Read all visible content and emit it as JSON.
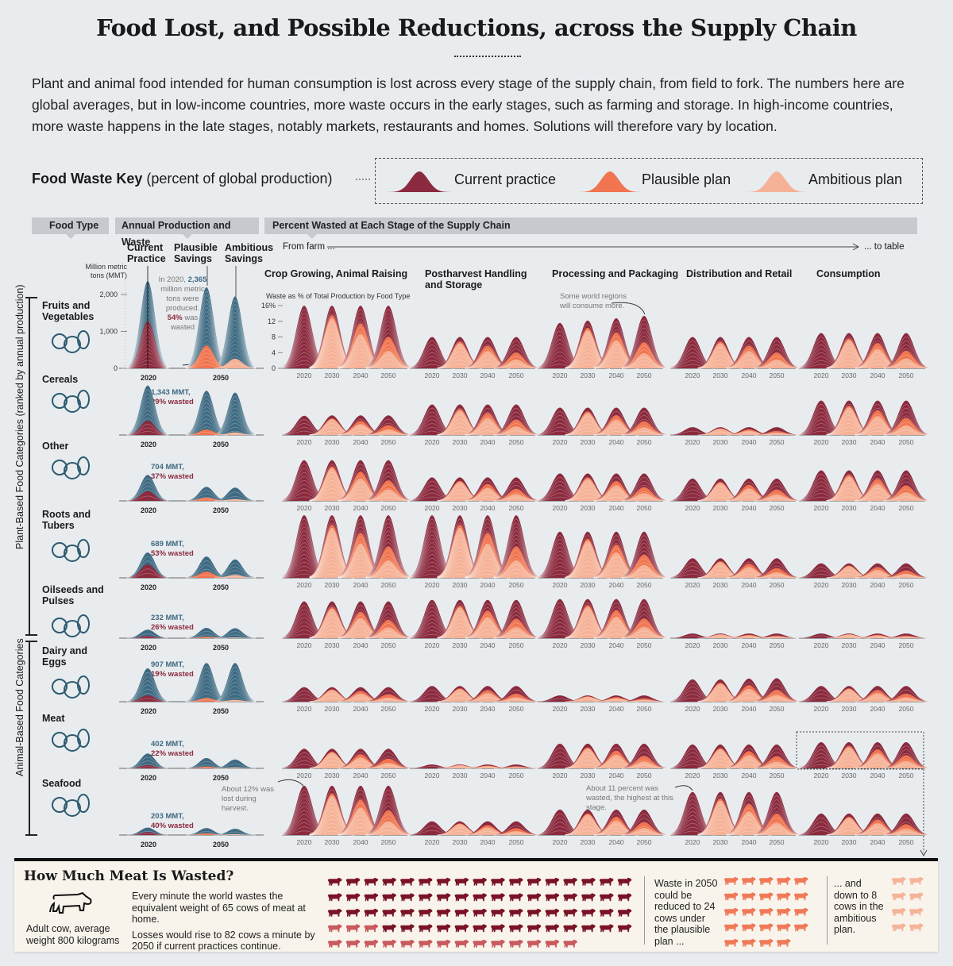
{
  "title": "Food Lost, and Possible Reductions, across the Supply Chain",
  "intro": "Plant and animal food intended for human consumption is lost across every stage of the supply chain, from field to fork. The numbers here are global averages, but in low-income countries, more waste occurs in the early stages, such as farming and storage. In high-income countries, more waste happens in the late stages, notably markets, restaurants and homes. Solutions will therefore vary by location.",
  "key": {
    "label_bold": "Food Waste Key",
    "label_rest": "(percent of global production)",
    "items": [
      {
        "label": "Current practice",
        "color": "#8b2a3e"
      },
      {
        "label": "Plausible plan",
        "color": "#f07550"
      },
      {
        "label": "Ambitious plan",
        "color": "#f6b297"
      }
    ]
  },
  "headers": {
    "food_type": "Food Type",
    "production": "Annual Production and Waste",
    "percent": "Percent Wasted at Each Stage of the Supply Chain"
  },
  "production_cols": {
    "current": "Current Practice",
    "plausible": "Plausible Savings",
    "ambitious": "Ambitious Savings"
  },
  "flow": {
    "from": "From farm ...",
    "to": "... to table"
  },
  "production_axis": {
    "label": "Million metric tons (MMT)",
    "ticks": [
      "0",
      "1,000",
      "2,000"
    ],
    "tick_values": [
      0,
      1000,
      2000
    ],
    "years": [
      "2020",
      "2050"
    ]
  },
  "stage_axis": {
    "label": "Waste as % of Total Production by Food Type",
    "ticks": [
      "0",
      "4",
      "8",
      "12",
      "16%"
    ],
    "tick_values": [
      0,
      4,
      8,
      12,
      16
    ],
    "years": [
      "2020",
      "2030",
      "2040",
      "2050"
    ]
  },
  "stages": [
    "Crop Growing, Animal Raising",
    "Postharvest Handling and Storage",
    "Processing and Packaging",
    "Distribution and Retail",
    "Consumption"
  ],
  "groups": {
    "plant": "Plant-Based Food Categories  (ranked by annual production)",
    "animal": "Animal-Based Food Categories"
  },
  "colors": {
    "current": "#8b2a3e",
    "plausible": "#f07550",
    "ambitious": "#f6b297",
    "production": "#3e6a82"
  },
  "annotations": {
    "fv_production": {
      "pre": "In 2020, ",
      "value": "2,365",
      "mid": " million metric tons were produced. ",
      "pct": "54%",
      "post": " was wasted"
    },
    "regions": "Some world regions will consume more.",
    "harvest": "About 12% was lost during harvest.",
    "seafood_dist": "About 11 percent was wasted, the highest at this stage."
  },
  "chart_data": {
    "type": "ridgeline",
    "units_production": "MMT",
    "units_stage": "% of total production",
    "plan_ratio_of_current": {
      "plausible": [
        1,
        0.85,
        0.72,
        0.5
      ],
      "ambitious": [
        1,
        0.8,
        0.55,
        0.28
      ]
    },
    "rows": [
      {
        "name": "Fruits and Vegetables",
        "production_2020": 2365,
        "pct_wasted": 54,
        "mmt_label": "",
        "prod_2050": {
          "plausible": 2200,
          "ambitious": 1950
        },
        "waste_2050": {
          "plausible": 620,
          "ambitious": 260
        },
        "stages": [
          [
            16,
            16,
            16,
            16
          ],
          [
            8,
            8,
            8,
            8
          ],
          [
            11.6,
            12.2,
            12.8,
            13.4
          ],
          [
            8,
            8,
            8,
            8
          ],
          [
            9,
            9,
            9,
            9
          ]
        ]
      },
      {
        "name": "Cereals",
        "production_2020": 1343,
        "pct_wasted": 29,
        "mmt_label": "1,343 MMT,",
        "pct_label": "29% wasted",
        "prod_2050": {
          "plausible": 1200,
          "ambitious": 1150
        },
        "waste_2050": {
          "plausible": 150,
          "ambitious": 70
        },
        "stages": [
          [
            4.9,
            5,
            5,
            5
          ],
          [
            7.8,
            7.8,
            7.8,
            7.8
          ],
          [
            7,
            7,
            7,
            7
          ],
          [
            2,
            2,
            2,
            2
          ],
          [
            8.8,
            8.8,
            8.8,
            8.8
          ]
        ]
      },
      {
        "name": "Other",
        "production_2020": 704,
        "pct_wasted": 37,
        "mmt_label": "704 MMT,",
        "pct_label": "37% wasted",
        "prod_2050": {
          "plausible": 380,
          "ambitious": 360
        },
        "waste_2050": {
          "plausible": 90,
          "ambitious": 50
        },
        "stages": [
          [
            10.4,
            10.4,
            10.4,
            10.4
          ],
          [
            6,
            6,
            6,
            6
          ],
          [
            7,
            7,
            7,
            7
          ],
          [
            5.7,
            5.7,
            5.7,
            5.7
          ],
          [
            7.8,
            7.8,
            7.8,
            7.8
          ]
        ]
      },
      {
        "name": "Roots and Tubers",
        "production_2020": 689,
        "pct_wasted": 53,
        "mmt_label": "689 MMT,",
        "pct_label": "53% wasted",
        "prod_2050": {
          "plausible": 580,
          "ambitious": 500
        },
        "waste_2050": {
          "plausible": 170,
          "ambitious": 80
        },
        "stages": [
          [
            16,
            16,
            16,
            16
          ],
          [
            16,
            16,
            16,
            16
          ],
          [
            11.8,
            11.8,
            11.8,
            11.8
          ],
          [
            5,
            5,
            5,
            5
          ],
          [
            3.7,
            3.7,
            3.7,
            3.7
          ]
        ]
      },
      {
        "name": "Oilseeds and Pulses",
        "production_2020": 232,
        "pct_wasted": 26,
        "mmt_label": "232 MMT,",
        "pct_label": "26% wasted",
        "prod_2050": {
          "plausible": 280,
          "ambitious": 270
        },
        "waste_2050": {
          "plausible": 40,
          "ambitious": 20
        },
        "stages": [
          [
            9.4,
            9.4,
            9.4,
            9.4
          ],
          [
            9.8,
            9.8,
            9.8,
            9.8
          ],
          [
            10,
            10,
            10,
            10
          ],
          [
            1.2,
            1.2,
            1.2,
            1.2
          ],
          [
            1.2,
            1.2,
            1.2,
            1.2
          ]
        ]
      },
      {
        "name": "Dairy and Eggs",
        "production_2020": 907,
        "pct_wasted": 19,
        "mmt_label": "907 MMT,",
        "pct_label": "19% wasted",
        "prod_2050": {
          "plausible": 1050,
          "ambitious": 1050
        },
        "waste_2050": {
          "plausible": 100,
          "ambitious": 50
        },
        "stages": [
          [
            3.7,
            3.7,
            3.7,
            3.7
          ],
          [
            4,
            4,
            4,
            4
          ],
          [
            1.6,
            1.6,
            1.6,
            1.6
          ],
          [
            5.7,
            5.7,
            5.9,
            6
          ],
          [
            4,
            4,
            4,
            4
          ]
        ]
      },
      {
        "name": "Meat",
        "production_2020": 402,
        "pct_wasted": 22,
        "mmt_label": "402 MMT,",
        "pct_label": "22% wasted",
        "prod_2050": {
          "plausible": 280,
          "ambitious": 240
        },
        "waste_2050": {
          "plausible": 50,
          "ambitious": 25
        },
        "stages": [
          [
            5,
            5,
            5,
            5
          ],
          [
            1,
            1,
            1,
            1
          ],
          [
            6.3,
            6.3,
            6.3,
            6.3
          ],
          [
            6.1,
            6.1,
            6.1,
            6.1
          ],
          [
            6.7,
            6.7,
            6.7,
            6.7
          ]
        ]
      },
      {
        "name": "Seafood",
        "production_2020": 203,
        "pct_wasted": 40,
        "mmt_label": "203 MMT,",
        "pct_label": "40% wasted",
        "prod_2050": {
          "plausible": 190,
          "ambitious": 170
        },
        "waste_2050": {
          "plausible": 50,
          "ambitious": 25
        },
        "stages": [
          [
            12.6,
            12.6,
            12.6,
            12.6
          ],
          [
            3.5,
            3.5,
            3.5,
            3.5
          ],
          [
            6.5,
            6.5,
            6.5,
            6.5
          ],
          [
            11,
            11,
            11,
            11
          ],
          [
            5.5,
            5.5,
            5.5,
            5.5
          ]
        ]
      }
    ]
  },
  "meat_panel": {
    "title": "How Much Meat Is Wasted?",
    "cow_caption": "Adult cow, average weight 800 kilograms",
    "text1": "Every minute the world wastes the equivalent weight of 65 cows of meat at home.",
    "text2": "Losses would rise to 82 cows a minute by 2050 if current practices continue.",
    "cows_now": 65,
    "cows_2050_current": 82,
    "plausible_text": "Waste in 2050 could be reduced to 24 cows under the plausible plan ...",
    "cows_plausible": 24,
    "ambitious_text": "... and down to 8 cows in the ambitious plan.",
    "cows_ambitious": 8,
    "colors": {
      "now": "#7a1326",
      "added": "#c95a5e",
      "plausible": "#f07a57",
      "ambitious": "#f5b49a"
    }
  }
}
